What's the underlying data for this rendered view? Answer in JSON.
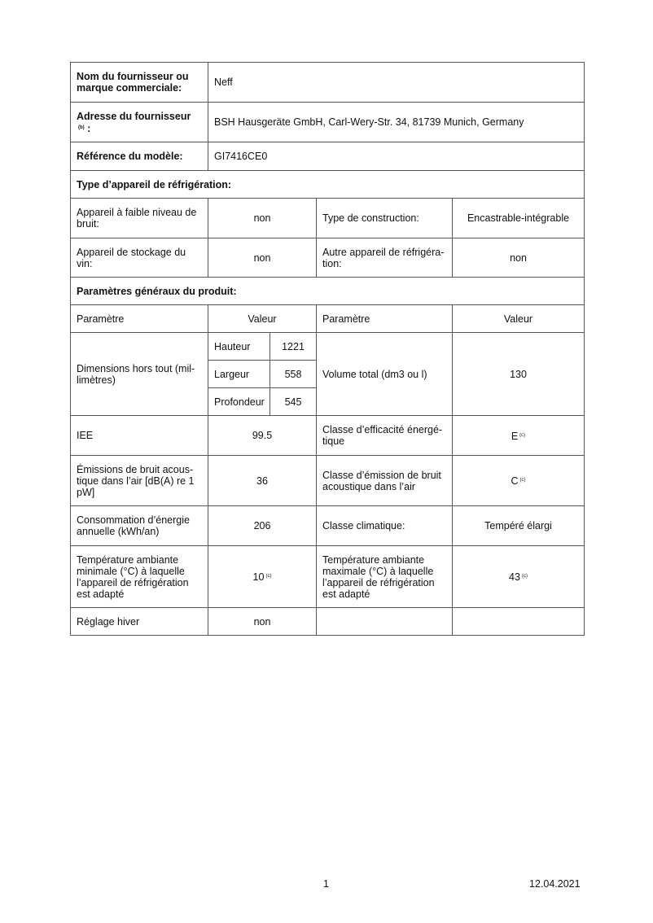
{
  "supplier": {
    "name_label": "Nom du fournisseur ou marque commerciale:",
    "name_value": "Neff",
    "address_label": "Adresse du fournisseur",
    "address_note": "(b)",
    "address_colon": ":",
    "address_value": "BSH Hausgeräte GmbH, Carl-Wery-Str. 34, 81739 Munich, Germany",
    "model_label": "Référence du modèle:",
    "model_value": "GI7416CE0"
  },
  "type_section": {
    "title": "Type d’appareil de réfrigération:",
    "low_noise_label": "Appareil à faible niveau de bruit:",
    "low_noise_value": "non",
    "construction_label": "Type de construction:",
    "construction_value": "Encastrable-intégrable",
    "wine_label": "Appareil de stockage du vin:",
    "wine_value": "non",
    "other_label": "Autre appareil de réfrigéra-tion:",
    "other_value": "non"
  },
  "params": {
    "title": "Paramètres généraux du produit:",
    "headers": [
      "Paramètre",
      "Valeur",
      "Paramètre",
      "Valeur"
    ],
    "dimensions_label": "Dimensions hors tout (mil-limètres)",
    "dimensions": [
      {
        "label": "Hauteur",
        "value": "1221"
      },
      {
        "label": "Largeur",
        "value": "558"
      },
      {
        "label": "Profondeur",
        "value": "545"
      }
    ],
    "volume_label": "Volume total (dm3 ou l)",
    "volume_value": "130",
    "iee_label": "IEE",
    "iee_value": "99.5",
    "energy_class_label": "Classe d’efficacité énergé-tique",
    "energy_class_value": "E",
    "energy_class_note": "(c)",
    "noise_label": "Émissions de bruit acous-tique dans l’air [dB(A) re 1 pW]",
    "noise_value": "36",
    "noise_class_label": "Classe d’émission de bruit acoustique dans l’air",
    "noise_class_value": "C",
    "noise_class_note": "(c)",
    "consumption_label": "Consommation d’énergie annuelle (kWh/an)",
    "consumption_value": "206",
    "climate_label": "Classe climatique:",
    "climate_value": "Tempéré élargi",
    "min_temp_label": "Température ambiante minimale (°C) à laquelle l’appareil de réfrigération est adapté",
    "min_temp_value": "10",
    "min_temp_note": "(c)",
    "max_temp_label": "Température ambiante maximale (°C) à laquelle l’appareil de réfrigération est adapté",
    "max_temp_value": "43",
    "max_temp_note": "(c)",
    "winter_label": "Réglage hiver",
    "winter_value": "non"
  },
  "footer": {
    "page": "1",
    "date": "12.04.2021"
  }
}
